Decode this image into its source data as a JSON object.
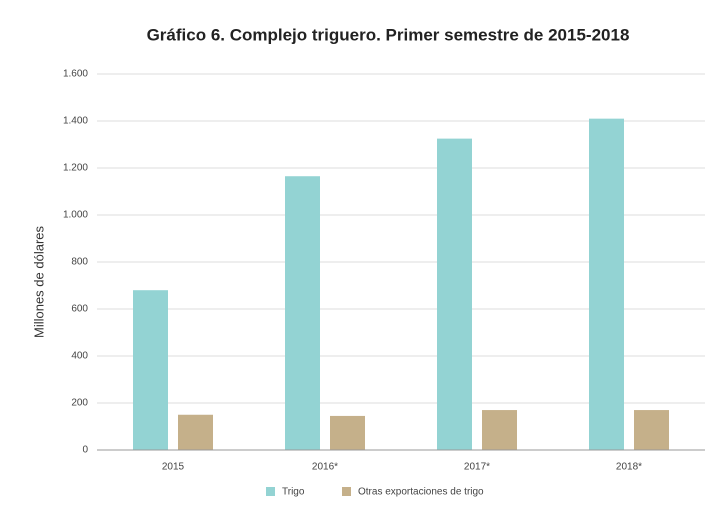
{
  "chart_data": {
    "type": "bar",
    "title": "Gráfico 6. Complejo triguero. Primer semestre de 2015-2018",
    "y_label": "Millones de dólares",
    "categories": [
      "2015",
      "2016*",
      "2017*",
      "2018*"
    ],
    "series": [
      {
        "name": "Trigo",
        "color": "#93d3d3",
        "values": [
          680,
          1165,
          1325,
          1410
        ]
      },
      {
        "name": "Otras exportaciones de trigo",
        "color": "#c5b08a",
        "values": [
          150,
          145,
          170,
          170
        ]
      }
    ],
    "ylim": [
      0,
      1600
    ],
    "yticks": [
      0,
      200,
      400,
      600,
      800,
      {
        "value": 1000,
        "label": "1.000"
      },
      {
        "value": 1200,
        "label": "1.200"
      },
      {
        "value": 1400,
        "label": "1.400"
      },
      {
        "value": 1600,
        "label": "1.600"
      }
    ],
    "grid": true
  }
}
